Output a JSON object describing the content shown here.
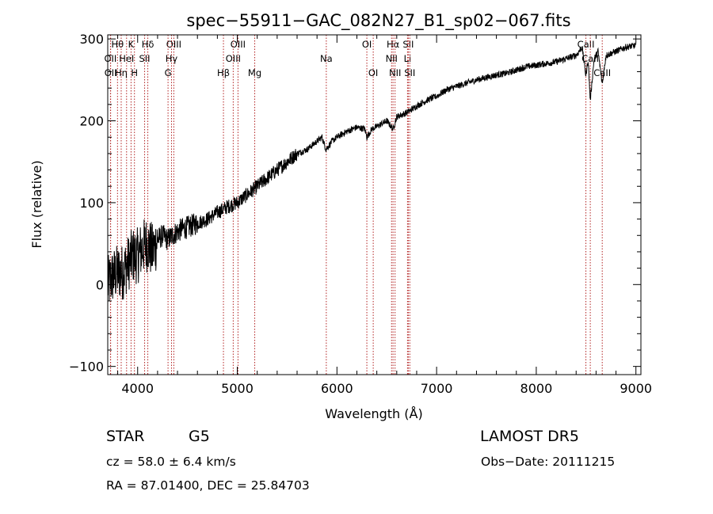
{
  "chart_data": {
    "type": "line",
    "title": "spec−55911−GAC_082N27_B1_sp02−067.fits",
    "xlabel": "Wavelength (Å)",
    "ylabel": "Flux (relative)",
    "xlim": [
      3700,
      9050
    ],
    "ylim": [
      -110,
      305
    ],
    "xticks": [
      4000,
      5000,
      6000,
      7000,
      8000,
      9000
    ],
    "yticks": [
      -100,
      0,
      100,
      200,
      300
    ],
    "grid": false,
    "series": [
      {
        "x": [
          3700,
          3750,
          3800,
          3850,
          3900,
          3950,
          4000,
          4050,
          4100,
          4150,
          4200,
          4250,
          4300,
          4350,
          4400,
          4450,
          4500,
          4600,
          4700,
          4800,
          4860,
          4900,
          5000,
          5100,
          5200,
          5300,
          5400,
          5500,
          5600,
          5700,
          5800,
          5850,
          5890,
          5950,
          6000,
          6100,
          6200,
          6280,
          6300,
          6350,
          6400,
          6500,
          6563,
          6600,
          6700,
          6800,
          6900,
          7000,
          7100,
          7200,
          7300,
          7400,
          7500,
          7600,
          7700,
          7800,
          7900,
          8000,
          8100,
          8200,
          8300,
          8400,
          8460,
          8498,
          8520,
          8542,
          8580,
          8620,
          8662,
          8700,
          8800,
          8900,
          9000
        ],
        "y": [
          0,
          10,
          15,
          15,
          25,
          35,
          35,
          45,
          50,
          40,
          55,
          60,
          55,
          60,
          65,
          68,
          70,
          75,
          80,
          88,
          92,
          95,
          100,
          110,
          120,
          130,
          140,
          150,
          160,
          165,
          175,
          180,
          165,
          175,
          180,
          187,
          192,
          190,
          180,
          190,
          193,
          200,
          190,
          205,
          210,
          218,
          225,
          230,
          238,
          242,
          246,
          250,
          253,
          256,
          258,
          262,
          266,
          268,
          270,
          272,
          276,
          280,
          290,
          255,
          275,
          225,
          275,
          285,
          245,
          280,
          285,
          290,
          292
        ]
      }
    ],
    "spectral_lines": [
      {
        "name": "Hθ",
        "wavelength": 3798,
        "row": 1,
        "offset": 0
      },
      {
        "name": "K",
        "wavelength": 3934,
        "row": 1,
        "offset": 0
      },
      {
        "name": "Hδ",
        "wavelength": 4102,
        "row": 1,
        "offset": 0
      },
      {
        "name": "OIII",
        "wavelength": 4363,
        "row": 1,
        "offset": 0
      },
      {
        "name": "OIII",
        "wavelength": 5007,
        "row": 1,
        "offset": 0
      },
      {
        "name": "OI",
        "wavelength": 6300,
        "row": 1,
        "offset": 0
      },
      {
        "name": "Hα",
        "wavelength": 6563,
        "row": 1,
        "offset": 0
      },
      {
        "name": "SII",
        "wavelength": 6716,
        "row": 1,
        "offset": 0
      },
      {
        "name": "CaII",
        "wavelength": 8498,
        "row": 1,
        "offset": 0
      },
      {
        "name": "OII",
        "wavelength": 3727,
        "row": 2,
        "offset": 0
      },
      {
        "name": "HeI",
        "wavelength": 3889,
        "row": 2,
        "offset": 0
      },
      {
        "name": "SII",
        "wavelength": 4070,
        "row": 2,
        "offset": 0
      },
      {
        "name": "Hγ",
        "wavelength": 4340,
        "row": 2,
        "offset": 0
      },
      {
        "name": "OIII",
        "wavelength": 4959,
        "row": 2,
        "offset": 0
      },
      {
        "name": "Na",
        "wavelength": 5893,
        "row": 2,
        "offset": 0
      },
      {
        "name": "NII",
        "wavelength": 6548,
        "row": 2,
        "offset": 0
      },
      {
        "name": "Li",
        "wavelength": 6708,
        "row": 2,
        "offset": 0
      },
      {
        "name": "CaII",
        "wavelength": 8542,
        "row": 2,
        "offset": 0
      },
      {
        "name": "OII",
        "wavelength": 3729,
        "row": 3,
        "offset": 0
      },
      {
        "name": "Hη",
        "wavelength": 3835,
        "row": 3,
        "offset": 0
      },
      {
        "name": "H",
        "wavelength": 3968,
        "row": 3,
        "offset": 0
      },
      {
        "name": "G",
        "wavelength": 4305,
        "row": 3,
        "offset": 0
      },
      {
        "name": "Hβ",
        "wavelength": 4861,
        "row": 3,
        "offset": 0
      },
      {
        "name": "Mg",
        "wavelength": 5175,
        "row": 3,
        "offset": 0
      },
      {
        "name": "OI",
        "wavelength": 6364,
        "row": 3,
        "offset": 0
      },
      {
        "name": "NII",
        "wavelength": 6583,
        "row": 3,
        "offset": 0
      },
      {
        "name": "SII",
        "wavelength": 6731,
        "row": 3,
        "offset": 0
      },
      {
        "name": "CaII",
        "wavelength": 8662,
        "row": 3,
        "offset": 0
      }
    ]
  },
  "info": {
    "class": "STAR",
    "subclass": "G5",
    "survey": "LAMOST  DR5",
    "cz": "cz = 58.0 ± 6.4 km/s",
    "obs_date": "Obs−Date: 20111215",
    "coords": "RA =  87.01400, DEC =  25.84703"
  }
}
